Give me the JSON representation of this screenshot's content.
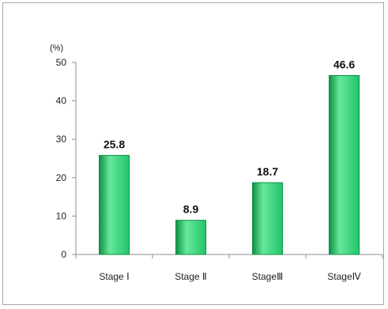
{
  "chart_data": {
    "type": "bar",
    "unit_label": "(%)",
    "categories": [
      "Stage Ⅰ",
      "Stage Ⅱ",
      "StageⅢ",
      "StageⅣ"
    ],
    "values": [
      25.8,
      8.9,
      18.7,
      46.6
    ],
    "value_labels": [
      "25.8",
      "8.9",
      "18.7",
      "46.6"
    ],
    "ylim": [
      0,
      50
    ],
    "yticks": [
      0,
      10,
      20,
      30,
      40,
      50
    ],
    "grid": false,
    "bar_color": "#22c46a",
    "bar_color_dark": "#0f8f45",
    "bar_color_light": "#66e89a"
  }
}
